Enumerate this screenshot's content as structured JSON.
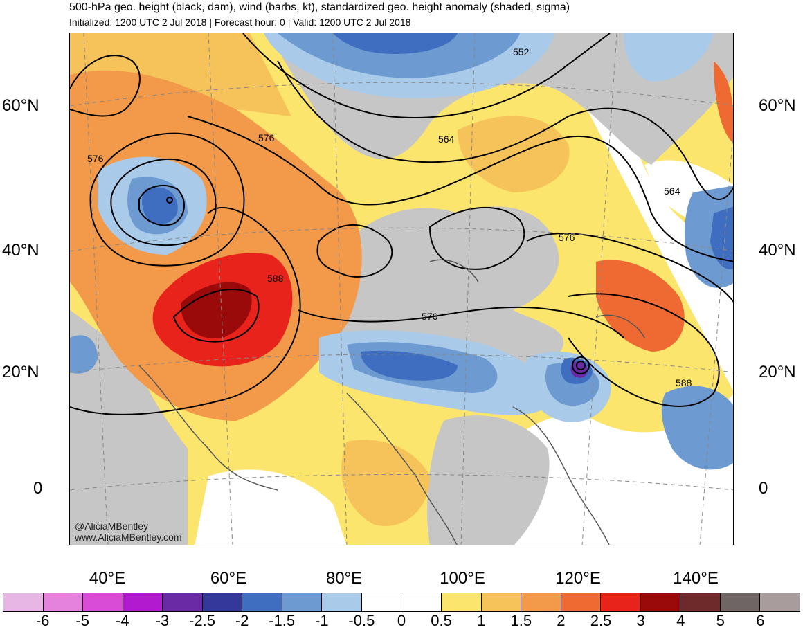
{
  "header": {
    "title": "500-hPa geo. height (black, dam), wind (barbs, kt), standardized geo. height anomaly (shaded, sigma)",
    "subtitle": "Initialized: 1200 UTC 2 Jul 2018 | Forecast hour: 0 | Valid: 1200 UTC 2 Jul 2018"
  },
  "map": {
    "lat_labels_left": [
      "60°N",
      "40°N",
      "20°N",
      "0"
    ],
    "lat_labels_right": [
      "60°N",
      "40°N",
      "20°N",
      "0"
    ],
    "lon_labels": [
      "40°E",
      "60°E",
      "80°E",
      "100°E",
      "120°E",
      "140°E"
    ],
    "contour_labels": [
      "552",
      "564",
      "576",
      "576",
      "588",
      "576",
      "576",
      "564",
      "588"
    ],
    "credit_handle": "@AliciaMBentley",
    "credit_site": "www.AliciaMBentley.com",
    "colors": {
      "grey": "#c6c6c6",
      "yellow": "#fbe56d",
      "light_orange": "#f6c25a",
      "orange": "#f29a4a",
      "red_orange": "#ef6a33",
      "red": "#e8231c",
      "dark_red": "#9b0a0a",
      "light_blue": "#a9cbe9",
      "mid_blue": "#6d9bd1",
      "blue": "#3f6dc0",
      "dark_blue": "#2e3fa0",
      "purple": "#6a2aa6"
    }
  },
  "colorbar": {
    "labels": [
      "-6",
      "-5",
      "-4",
      "-3",
      "-2.5",
      "-2",
      "-1.5",
      "-1",
      "-0.5",
      "0",
      "0.5",
      "1",
      "1.5",
      "2",
      "2.5",
      "3",
      "4",
      "5",
      "6"
    ],
    "colors": [
      "#e8b6e4",
      "#e582de",
      "#d84cd6",
      "#b21ad0",
      "#6a2aa6",
      "#33389a",
      "#3f6dc0",
      "#6d9bd1",
      "#a9cbe9",
      "#ffffff",
      "#ffffff",
      "#fbe56d",
      "#f6c25a",
      "#f29a4a",
      "#ef6a33",
      "#e8231c",
      "#9b0a0a",
      "#6e2a2a",
      "#6f6565",
      "#a89c9c"
    ]
  }
}
